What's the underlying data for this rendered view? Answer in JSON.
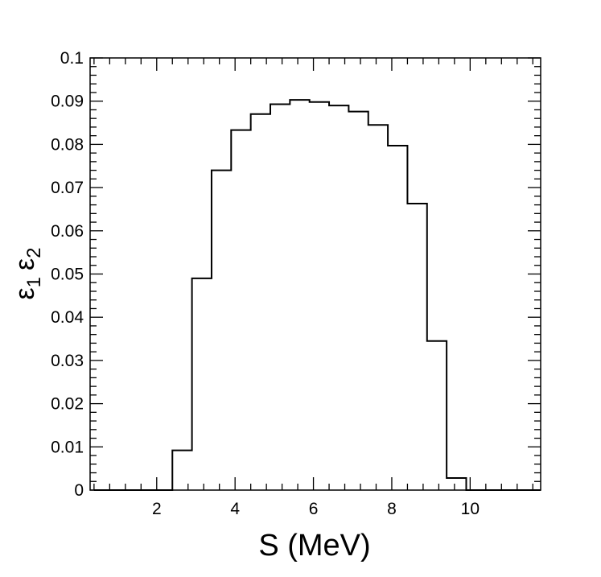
{
  "chart_data": {
    "type": "histogram",
    "title": "",
    "xlabel": "S (MeV)",
    "ylabel_symbol": "ε",
    "ylabel_sub1": "1",
    "ylabel_sub2": "2",
    "xlim": [
      0.3,
      11.8
    ],
    "ylim": [
      0,
      0.1
    ],
    "grid": false,
    "legend": "none",
    "x_ticks": [
      {
        "value": 2,
        "label": "2"
      },
      {
        "value": 4,
        "label": "4"
      },
      {
        "value": 6,
        "label": "6"
      },
      {
        "value": 8,
        "label": "8"
      },
      {
        "value": 10,
        "label": "10"
      }
    ],
    "y_ticks": [
      {
        "value": 0,
        "label": "0"
      },
      {
        "value": 0.01,
        "label": "0.01"
      },
      {
        "value": 0.02,
        "label": "0.02"
      },
      {
        "value": 0.03,
        "label": "0.03"
      },
      {
        "value": 0.04,
        "label": "0.04"
      },
      {
        "value": 0.05,
        "label": "0.05"
      },
      {
        "value": 0.06,
        "label": "0.06"
      },
      {
        "value": 0.07,
        "label": "0.07"
      },
      {
        "value": 0.08,
        "label": "0.08"
      },
      {
        "value": 0.09,
        "label": "0.09"
      },
      {
        "value": 0.1,
        "label": "0.1"
      }
    ],
    "bin_edges": [
      0.4,
      0.9,
      1.4,
      1.9,
      2.4,
      2.9,
      3.4,
      3.9,
      4.4,
      4.9,
      5.4,
      5.9,
      6.4,
      6.9,
      7.4,
      7.9,
      8.4,
      8.9,
      9.4,
      9.9,
      10.4,
      10.9,
      11.4,
      11.8
    ],
    "values": [
      0,
      0,
      0,
      0,
      0.0092,
      0.049,
      0.074,
      0.0833,
      0.087,
      0.0893,
      0.0903,
      0.0898,
      0.089,
      0.0876,
      0.0845,
      0.0797,
      0.0663,
      0.0345,
      0.0028,
      0,
      0,
      0,
      0
    ],
    "line_color": "#000000"
  }
}
